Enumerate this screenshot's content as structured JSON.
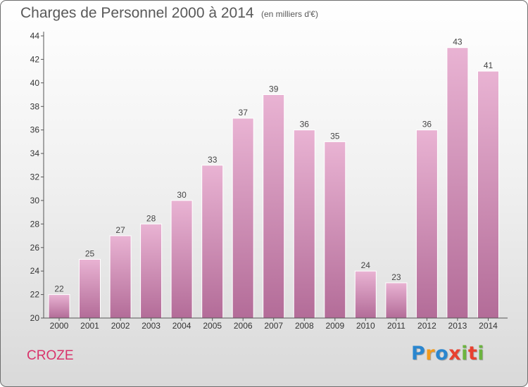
{
  "header": {
    "title": "Charges de Personnel 2000 à 2014",
    "unit_note": "(en milliers d'€)"
  },
  "footer": {
    "commune": "CROZE",
    "logo_text": "Proxiti"
  },
  "colors": {
    "bar_top": "#e9b3d3",
    "bar_bottom": "#b36c98",
    "commune_text": "#d9336b",
    "axis": "#555555"
  },
  "chart_data": {
    "type": "bar",
    "title": "Charges de Personnel 2000 à 2014",
    "subtitle": "(en milliers d'€)",
    "categories": [
      "2000",
      "2001",
      "2002",
      "2003",
      "2004",
      "2005",
      "2006",
      "2007",
      "2008",
      "2009",
      "2010",
      "2011",
      "2012",
      "2013",
      "2014"
    ],
    "values": [
      22,
      25,
      27,
      28,
      30,
      33,
      37,
      39,
      36,
      35,
      24,
      23,
      36,
      43,
      41
    ],
    "ylim": [
      20,
      44
    ],
    "yticks": [
      20,
      22,
      24,
      26,
      28,
      30,
      32,
      34,
      36,
      38,
      40,
      42,
      44
    ],
    "grid": false,
    "data_labels": true,
    "legend": "none"
  }
}
